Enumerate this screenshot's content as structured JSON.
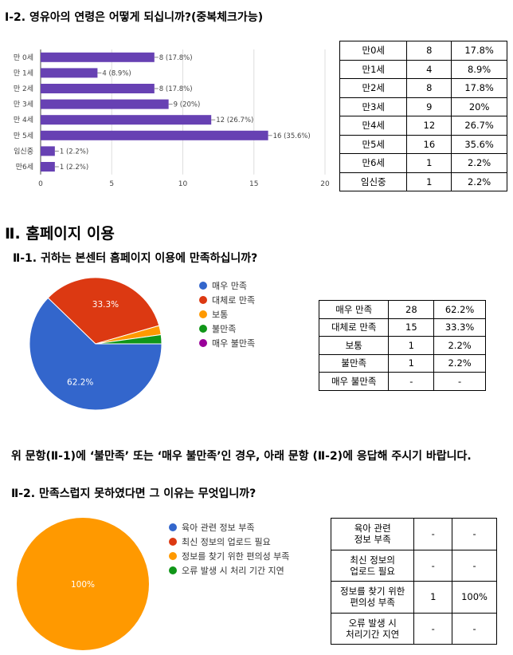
{
  "q1": {
    "title": "Ⅰ-2. 영유아의 연령은 어떻게 되십니까?(중복체크가능)",
    "table": [
      [
        "만0세",
        "8",
        "17.8%"
      ],
      [
        "만1세",
        "4",
        "8.9%"
      ],
      [
        "만2세",
        "8",
        "17.8%"
      ],
      [
        "만3세",
        "9",
        "20%"
      ],
      [
        "만4세",
        "12",
        "26.7%"
      ],
      [
        "만5세",
        "16",
        "35.6%"
      ],
      [
        "만6세",
        "1",
        "2.2%"
      ],
      [
        "임신중",
        "1",
        "2.2%"
      ]
    ]
  },
  "section2": {
    "title": "Ⅱ. 홈페이지 이용"
  },
  "q2": {
    "title": "Ⅱ-1. 귀하는 본센터 홈페이지 이용에 만족하십니까?",
    "table": [
      [
        "매우 만족",
        "28",
        "62.2%"
      ],
      [
        "대체로 만족",
        "15",
        "33.3%"
      ],
      [
        "보통",
        "1",
        "2.2%"
      ],
      [
        "불만족",
        "1",
        "2.2%"
      ],
      [
        "매우 불만족",
        "-",
        "-"
      ]
    ]
  },
  "instruction": "위 문항(Ⅱ-1)에 ‘불만족’ 또는 ‘매우 불만족’인 경우, 아래 문항 (Ⅱ-2)에 응답해 주시기 바랍니다.",
  "q3": {
    "title": "Ⅱ-2. 만족스럽지 못하였다면 그 이유는 무엇입니까?",
    "table": [
      [
        "육아 관련\n정보 부족",
        "-",
        "-"
      ],
      [
        "최신 정보의\n업로드 필요",
        "-",
        "-"
      ],
      [
        "정보를 찾기 위한\n편의성 부족",
        "1",
        "100%"
      ],
      [
        "오류 발생 시\n처리기간 지연",
        "-",
        "-"
      ]
    ]
  },
  "chart_data": [
    {
      "type": "bar",
      "orientation": "horizontal",
      "categories": [
        "만 0세",
        "만 1세",
        "만 2세",
        "만 3세",
        "만 4세",
        "만 5세",
        "임신중",
        "만6세"
      ],
      "values": [
        8,
        4,
        8,
        9,
        12,
        16,
        1,
        1
      ],
      "data_labels": [
        "8 (17.8%)",
        "4 (8.9%)",
        "8 (17.8%)",
        "9 (20%)",
        "12 (26.7%)",
        "16 (35.6%)",
        "1 (2.2%)",
        "1 (2.2%)"
      ],
      "xlim": [
        0,
        20
      ],
      "xticks": [
        "0",
        "5",
        "10",
        "15",
        "20"
      ],
      "grid": true,
      "colors": {
        "bar": "#6741b3",
        "grid": "#dddddd"
      }
    },
    {
      "type": "pie",
      "labels": [
        "매우 만족",
        "대체로 만족",
        "보통",
        "불만족",
        "매우 불만족"
      ],
      "values": [
        28,
        15,
        1,
        1,
        0
      ],
      "slice_labels": [
        "62.2%",
        "33.3%",
        "",
        "",
        ""
      ],
      "colors": [
        "#3366cc",
        "#dc3912",
        "#ff9900",
        "#109618",
        "#990099"
      ],
      "legend": "right"
    },
    {
      "type": "pie",
      "labels": [
        "육아 관련 정보 부족",
        "최신 정보의 업로드 필요",
        "정보를 찾기 위한 편의성 부족",
        "오류 발생 시 처리 기간 지연"
      ],
      "values": [
        0,
        0,
        1,
        0
      ],
      "slice_labels": [
        "",
        "",
        "100%",
        ""
      ],
      "colors": [
        "#3366cc",
        "#dc3912",
        "#ff9900",
        "#109618"
      ],
      "legend": "right"
    }
  ]
}
